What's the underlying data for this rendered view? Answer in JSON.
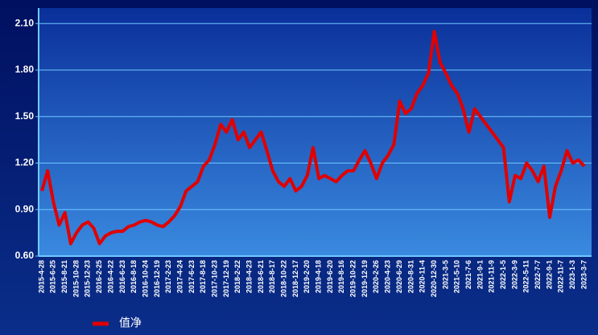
{
  "chart_data": {
    "type": "line",
    "categories": [
      "2015-4-28",
      null,
      "2015-6-25",
      null,
      "2015-8-21",
      null,
      "2015-10-28",
      null,
      "2015-12-23",
      null,
      "2016-2-25",
      null,
      "2016-4-22",
      null,
      "2016-6-23",
      null,
      "2016-8-18",
      null,
      "2016-10-24",
      null,
      "2016-12-19",
      null,
      "2017-2-23",
      null,
      "2017-4-24",
      null,
      "2017-6-23",
      null,
      "2017-8-18",
      null,
      "2017-10-23",
      null,
      "2017-12-19",
      null,
      "2018-2-22",
      null,
      "2018-4-23",
      null,
      "2018-6-21",
      null,
      "2018-8-17",
      null,
      "2018-10-22",
      null,
      "2018-12-17",
      null,
      "2019-2-20",
      null,
      "2019-4-18",
      null,
      "2019-6-20",
      null,
      "2019-8-16",
      null,
      "2019-10-22",
      null,
      "2019-12-19",
      null,
      "2020-2-26",
      null,
      "2020-4-23",
      null,
      "2020-6-29",
      null,
      "2020-8-31",
      null,
      "2020-11-4",
      null,
      "2020-12-30",
      null,
      "2021-3-5",
      null,
      "2021-5-10",
      null,
      "2021-7-6",
      null,
      "2021-9-1",
      null,
      "2021-11-9",
      null,
      "2022-1-5",
      null,
      "2022-3-9",
      null,
      "2022-5-11",
      null,
      "2022-7-7",
      null,
      "2022-9-1",
      null,
      "2022-11-7",
      null,
      "2023-1-3",
      null,
      "2023-3-7"
    ],
    "series": [
      {
        "name": "值净",
        "color": "#e00000",
        "values": [
          1.02,
          1.15,
          0.95,
          0.8,
          0.88,
          0.68,
          0.75,
          0.8,
          0.82,
          0.78,
          0.68,
          0.73,
          0.75,
          0.76,
          0.76,
          0.79,
          0.8,
          0.82,
          0.83,
          0.82,
          0.8,
          0.79,
          0.82,
          0.86,
          0.92,
          1.02,
          1.05,
          1.08,
          1.18,
          1.22,
          1.32,
          1.45,
          1.4,
          1.48,
          1.35,
          1.4,
          1.3,
          1.35,
          1.4,
          1.28,
          1.15,
          1.08,
          1.05,
          1.1,
          1.02,
          1.05,
          1.12,
          1.3,
          1.1,
          1.12,
          1.1,
          1.08,
          1.12,
          1.15,
          1.15,
          1.22,
          1.28,
          1.2,
          1.1,
          1.2,
          1.25,
          1.32,
          1.6,
          1.52,
          1.55,
          1.65,
          1.7,
          1.78,
          2.05,
          1.85,
          1.78,
          1.7,
          1.65,
          1.55,
          1.4,
          1.55,
          1.5,
          1.45,
          1.4,
          1.35,
          1.3,
          0.95,
          1.12,
          1.1,
          1.2,
          1.15,
          1.08,
          1.18,
          0.85,
          1.05,
          1.15,
          1.28,
          1.2,
          1.22,
          1.18
        ]
      }
    ],
    "ylim": [
      0.6,
      2.2
    ],
    "yticks": [
      {
        "value": 0.6,
        "label": "0.60"
      },
      {
        "value": 0.9,
        "label": "0.90"
      },
      {
        "value": 1.2,
        "label": "1.20"
      },
      {
        "value": 1.5,
        "label": "1.50"
      },
      {
        "value": 1.8,
        "label": "1.80"
      },
      {
        "value": 2.1,
        "label": "2.10"
      }
    ],
    "grid": true
  }
}
